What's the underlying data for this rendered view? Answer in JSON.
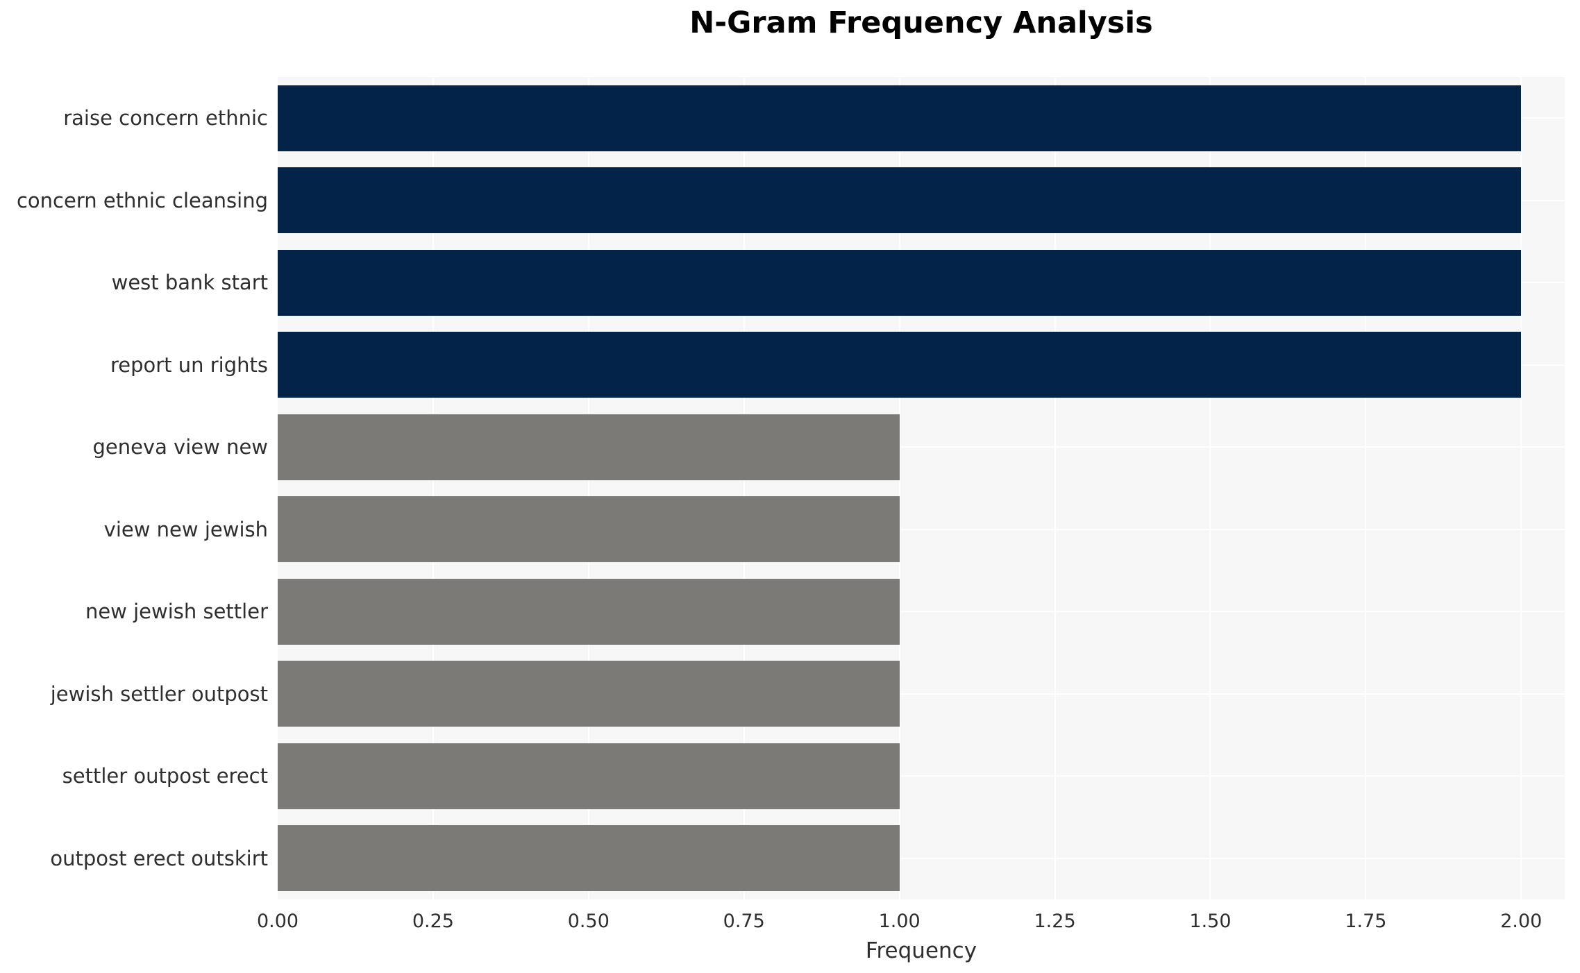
{
  "chart_data": {
    "type": "bar",
    "orientation": "horizontal",
    "title": "N-Gram Frequency Analysis",
    "xlabel": "Frequency",
    "ylabel": "",
    "categories": [
      "raise concern ethnic",
      "concern ethnic cleansing",
      "west bank start",
      "report un rights",
      "geneva view new",
      "view new jewish",
      "new jewish settler",
      "jewish settler outpost",
      "settler outpost erect",
      "outpost erect outskirt"
    ],
    "values": [
      2,
      2,
      2,
      2,
      1,
      1,
      1,
      1,
      1,
      1
    ],
    "bar_colors": [
      "#042349",
      "#042349",
      "#042349",
      "#042349",
      "#7b7a76",
      "#7b7a76",
      "#7b7a76",
      "#7b7a76",
      "#7b7a76",
      "#7b7a76"
    ],
    "xlim": [
      0,
      2.07
    ],
    "xticks": {
      "values": [
        0,
        0.25,
        0.5,
        0.75,
        1.0,
        1.25,
        1.5,
        1.75,
        2.0
      ],
      "labels": [
        "0.00",
        "0.25",
        "0.50",
        "0.75",
        "1.00",
        "1.25",
        "1.50",
        "1.75",
        "2.00"
      ]
    },
    "grid": "on",
    "legend": "none",
    "colors": {
      "bar_high": "#042349",
      "bar_low": "#7b7a76",
      "plot_bg": "#f7f7f7",
      "grid": "#ffffff",
      "title_text": "#000000",
      "axis_text": "#2e2e2e"
    }
  }
}
